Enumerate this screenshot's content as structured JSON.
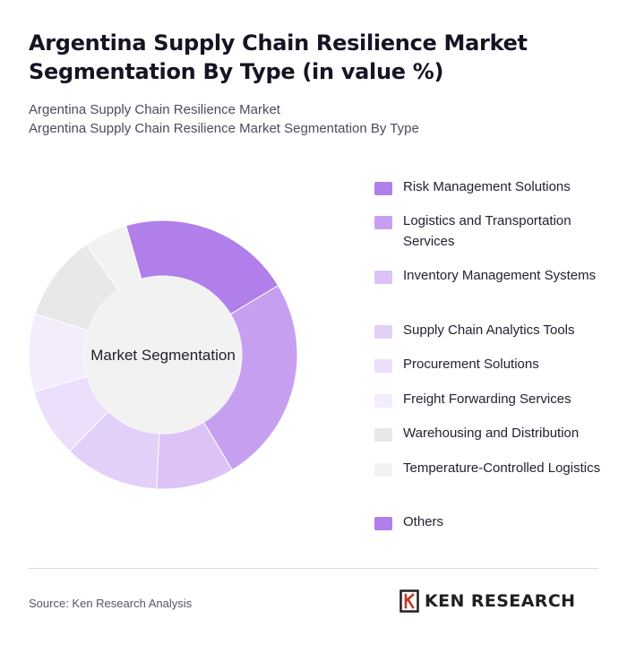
{
  "title": "Argentina Supply Chain Resilience Market Segmentation By Type (in value %)",
  "subtitle_lines": [
    "Argentina Supply Chain Resilience Market",
    "Argentina Supply Chain Resilience Market Segmentation By Type"
  ],
  "chart_data": {
    "type": "pie",
    "donut": true,
    "center_label": "Market Segmentation",
    "start_angle_deg": -16,
    "slices": [
      {
        "label": "Risk Management Solutions",
        "value": 20,
        "color": "#b07fe9"
      },
      {
        "label": "Logistics and Transportation Services",
        "value": 24,
        "color": "#c79ff0"
      },
      {
        "label": "Inventory Management Systems",
        "value": 9,
        "color": "#dbc3f6"
      },
      {
        "label": "Supply Chain Analytics Tools",
        "value": 11,
        "color": "#e3d0f8"
      },
      {
        "label": "Procurement Solutions",
        "value": 8,
        "color": "#ebdffb"
      },
      {
        "label": "Freight Forwarding Services",
        "value": 9,
        "color": "#f3ecfd"
      },
      {
        "label": "Warehousing and Distribution",
        "value": 10,
        "color": "#e8e8e8"
      },
      {
        "label": "Temperature-Controlled Logistics",
        "value": 5,
        "color": "#f2f2f2"
      },
      {
        "label": "Others",
        "value": 0,
        "color": "#b07fe9"
      }
    ],
    "legend_position": "right"
  },
  "footer": {
    "source": "Source: Ken Research Analysis",
    "brand": "KEN RESEARCH"
  },
  "colors": {
    "hole": "#f2f2f2",
    "divider": "#d8d8de"
  }
}
